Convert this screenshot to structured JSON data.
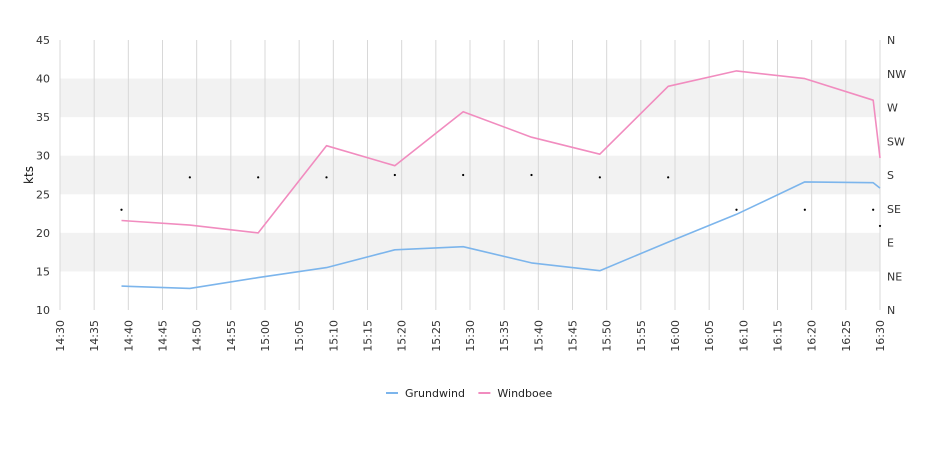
{
  "chart_data": {
    "type": "line",
    "ylabel": "kts",
    "ylim": [
      10,
      45
    ],
    "yticks": [
      10,
      15,
      20,
      25,
      30,
      35,
      40,
      45
    ],
    "xlim": [
      "14:30",
      "16:30"
    ],
    "xticks": [
      "14:30",
      "14:35",
      "14:40",
      "14:45",
      "14:50",
      "14:55",
      "15:00",
      "15:05",
      "15:10",
      "15:15",
      "15:20",
      "15:25",
      "15:30",
      "15:35",
      "15:40",
      "15:45",
      "15:50",
      "15:55",
      "16:00",
      "16:05",
      "16:10",
      "16:15",
      "16:20",
      "16:25",
      "16:30"
    ],
    "right_axis_labels": [
      "N",
      "NE",
      "E",
      "SE",
      "S",
      "SW",
      "W",
      "NW",
      "N"
    ],
    "grid": true,
    "legend_position": "bottom",
    "series": [
      {
        "name": "Grundwind",
        "color": "#7cb5ec",
        "x": [
          "14:39",
          "14:49",
          "14:59",
          "15:09",
          "15:19",
          "15:29",
          "15:39",
          "15:49",
          "15:59",
          "16:09",
          "16:19",
          "16:29",
          "16:30"
        ],
        "values": [
          13.1,
          12.8,
          14.2,
          15.5,
          17.8,
          18.2,
          16.1,
          15.1,
          18.8,
          22.4,
          26.6,
          26.5,
          25.8
        ]
      },
      {
        "name": "Windboee",
        "color": "#f18cbf",
        "x": [
          "14:39",
          "14:49",
          "14:59",
          "15:09",
          "15:19",
          "15:29",
          "15:39",
          "15:49",
          "15:59",
          "16:09",
          "16:19",
          "16:29",
          "16:30"
        ],
        "values": [
          21.6,
          21.0,
          20.0,
          31.3,
          28.7,
          35.7,
          32.4,
          30.2,
          39.0,
          41.0,
          40.0,
          37.2,
          29.7
        ]
      }
    ],
    "direction_points": [
      {
        "x": "14:39",
        "y": 23.0
      },
      {
        "x": "14:49",
        "y": 27.2
      },
      {
        "x": "14:59",
        "y": 27.2
      },
      {
        "x": "15:09",
        "y": 27.2
      },
      {
        "x": "15:19",
        "y": 27.5
      },
      {
        "x": "15:29",
        "y": 27.5
      },
      {
        "x": "15:39",
        "y": 27.5
      },
      {
        "x": "15:49",
        "y": 27.2
      },
      {
        "x": "15:59",
        "y": 27.2
      },
      {
        "x": "16:09",
        "y": 23.0
      },
      {
        "x": "16:19",
        "y": 23.0
      },
      {
        "x": "16:29",
        "y": 23.0
      },
      {
        "x": "16:30",
        "y": 20.9
      }
    ]
  },
  "legend": [
    {
      "label": "Grundwind",
      "color": "#7cb5ec"
    },
    {
      "label": "Windboee",
      "color": "#f18cbf"
    }
  ]
}
